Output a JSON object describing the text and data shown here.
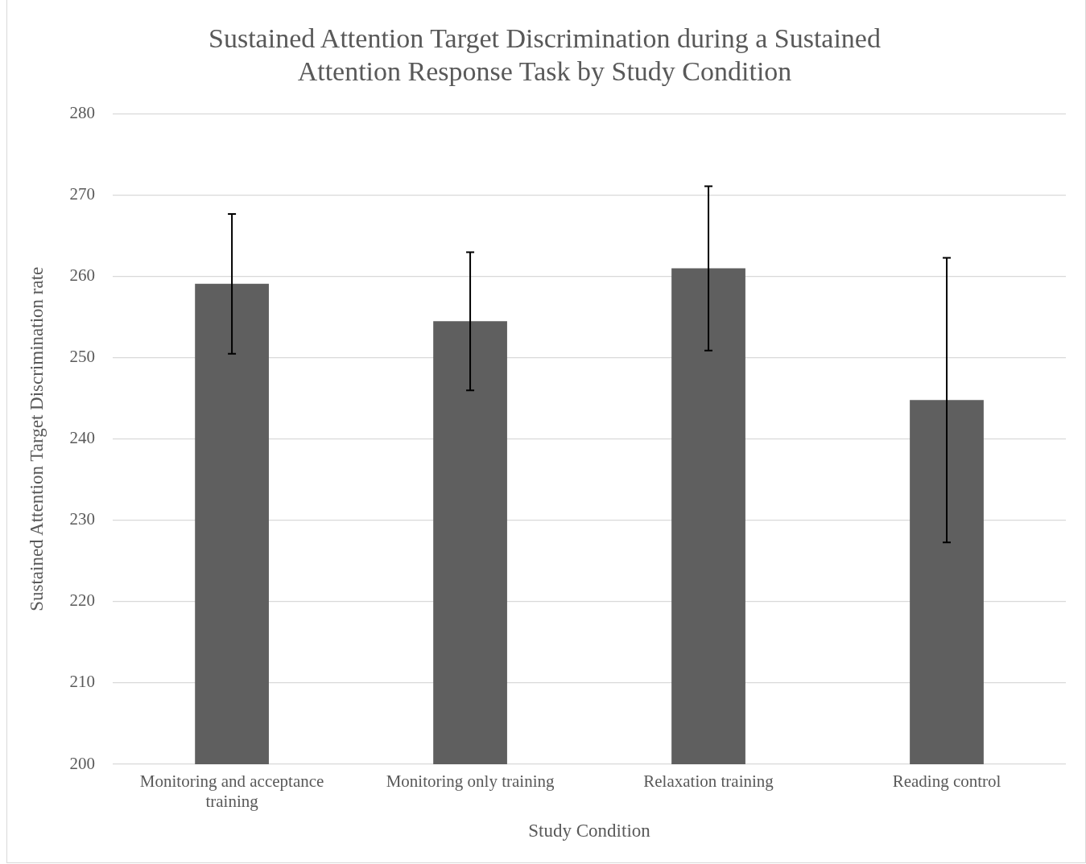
{
  "chart_data": {
    "type": "bar",
    "title": "Sustained Attention Target Discrimination during a Sustained Attention Response Task by Study Condition",
    "xlabel": "Study Condition",
    "ylabel": "Sustained Attention Target Discrimination rate",
    "categories": [
      "Monitoring and acceptance training",
      "Monitoring only training",
      "Relaxation training",
      "Reading control"
    ],
    "values": [
      259.1,
      254.5,
      261.0,
      244.8
    ],
    "errors": [
      8.6,
      8.5,
      10.1,
      17.5
    ],
    "color": "#5f5f5f",
    "ylim": [
      200,
      280
    ],
    "yticks": [
      200,
      210,
      220,
      230,
      240,
      250,
      260,
      270,
      280
    ],
    "grid": "y",
    "legend": false
  }
}
